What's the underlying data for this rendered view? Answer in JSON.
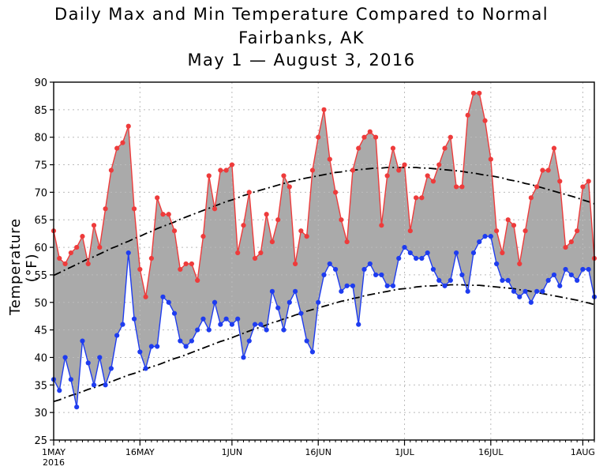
{
  "chart_data": {
    "type": "line",
    "title": "Daily Max and Min Temperature Compared to Normal",
    "subtitle": "Fairbanks, AK",
    "date_range": "May 1 — August 3, 2016",
    "xlabel": "",
    "ylabel": "Temperature (°F)",
    "ylim": [
      25,
      90
    ],
    "yticks": [
      25,
      30,
      35,
      40,
      45,
      50,
      55,
      60,
      65,
      70,
      75,
      80,
      85,
      90
    ],
    "xlim": [
      0,
      94
    ],
    "xticks": [
      {
        "day": 0,
        "label": "1MAY"
      },
      {
        "day": 15,
        "label": "16MAY"
      },
      {
        "day": 31,
        "label": "1JUN"
      },
      {
        "day": 46,
        "label": "16JUN"
      },
      {
        "day": 61,
        "label": "1JUL"
      },
      {
        "day": 76,
        "label": "16JUL"
      },
      {
        "day": 92,
        "label": "1AUG"
      }
    ],
    "year_label": "2016",
    "grid": true,
    "fill_between": "max-min shaded gray",
    "colors": {
      "max": "#ee3b3b",
      "min": "#1e3cf0",
      "fill": "#aaaaaa",
      "normal": "#000000",
      "grid": "#bbbbbb"
    },
    "series": [
      {
        "name": "Daily Max",
        "values": [
          63,
          58,
          57,
          59,
          60,
          62,
          57,
          64,
          60,
          67,
          74,
          78,
          79,
          82,
          67,
          56,
          51,
          58,
          69,
          66,
          66,
          63,
          56,
          57,
          57,
          54,
          62,
          73,
          67,
          74,
          74,
          75,
          59,
          64,
          70,
          58,
          59,
          66,
          61,
          65,
          73,
          71,
          57,
          63,
          62,
          74,
          80,
          85,
          76,
          70,
          65,
          61,
          74,
          78,
          80,
          81,
          80,
          64,
          73,
          78,
          74,
          75,
          63,
          69,
          69,
          73,
          72,
          75,
          78,
          80,
          71,
          71,
          84,
          88,
          88,
          83,
          76,
          63,
          59,
          65,
          64,
          57,
          63,
          69,
          71,
          74,
          74,
          78,
          72,
          60,
          61,
          63,
          71,
          72,
          58
        ]
      },
      {
        "name": "Daily Min",
        "values": [
          36,
          34,
          40,
          36,
          31,
          43,
          39,
          35,
          40,
          35,
          38,
          44,
          46,
          59,
          47,
          41,
          38,
          42,
          42,
          51,
          50,
          48,
          43,
          42,
          43,
          45,
          47,
          45,
          50,
          46,
          47,
          46,
          47,
          40,
          43,
          46,
          46,
          45,
          52,
          49,
          45,
          50,
          52,
          48,
          43,
          41,
          50,
          55,
          57,
          56,
          52,
          53,
          53,
          46,
          56,
          57,
          55,
          55,
          53,
          53,
          58,
          60,
          59,
          58,
          58,
          59,
          56,
          54,
          53,
          54,
          59,
          55,
          52,
          59,
          61,
          62,
          62,
          57,
          54,
          54,
          52,
          51,
          52,
          50,
          52,
          52,
          54,
          55,
          53,
          56,
          55,
          54,
          56,
          56,
          51
        ]
      },
      {
        "name": "Normal Max",
        "values": [
          54.9,
          55.4,
          55.9,
          56.4,
          56.9,
          57.4,
          57.9,
          58.3,
          58.8,
          59.3,
          59.8,
          60.2,
          60.7,
          61.1,
          61.6,
          62.0,
          62.5,
          62.9,
          63.4,
          63.8,
          64.2,
          64.6,
          65.1,
          65.5,
          65.9,
          66.3,
          66.7,
          67.1,
          67.5,
          67.9,
          68.3,
          68.6,
          69.0,
          69.4,
          69.7,
          70.1,
          70.4,
          70.7,
          71.0,
          71.3,
          71.6,
          71.9,
          72.1,
          72.4,
          72.6,
          72.8,
          73.0,
          73.2,
          73.4,
          73.6,
          73.7,
          73.9,
          74.0,
          74.1,
          74.2,
          74.3,
          74.4,
          74.4,
          74.5,
          74.5,
          74.5,
          74.5,
          74.5,
          74.5,
          74.4,
          74.4,
          74.3,
          74.2,
          74.1,
          74.0,
          73.9,
          73.8,
          73.6,
          73.5,
          73.3,
          73.1,
          73.0,
          72.8,
          72.6,
          72.3,
          72.1,
          71.9,
          71.6,
          71.4,
          71.1,
          70.8,
          70.5,
          70.2,
          69.9,
          69.6,
          69.3,
          69.0,
          68.6,
          68.3,
          67.9
        ]
      },
      {
        "name": "Normal Min",
        "values": [
          32.0,
          32.3,
          32.7,
          33.1,
          33.4,
          33.8,
          34.2,
          34.5,
          34.9,
          35.3,
          35.6,
          36.0,
          36.4,
          36.8,
          37.1,
          37.5,
          37.9,
          38.3,
          38.6,
          39.0,
          39.4,
          39.8,
          40.1,
          40.5,
          40.9,
          41.3,
          41.7,
          42.1,
          42.5,
          42.9,
          43.2,
          43.6,
          44.0,
          44.4,
          44.8,
          45.2,
          45.5,
          45.9,
          46.3,
          46.6,
          47.0,
          47.3,
          47.7,
          48.0,
          48.4,
          48.7,
          49.0,
          49.3,
          49.6,
          49.9,
          50.2,
          50.4,
          50.7,
          50.9,
          51.2,
          51.4,
          51.6,
          51.8,
          52.0,
          52.2,
          52.4,
          52.5,
          52.6,
          52.8,
          52.9,
          53.0,
          53.0,
          53.1,
          53.1,
          53.2,
          53.2,
          53.2,
          53.1,
          53.1,
          53.1,
          53.0,
          52.9,
          52.8,
          52.7,
          52.6,
          52.5,
          52.3,
          52.2,
          52.0,
          51.8,
          51.6,
          51.4,
          51.2,
          51.0,
          50.8,
          50.6,
          50.4,
          50.1,
          49.9,
          49.6
        ]
      }
    ]
  }
}
